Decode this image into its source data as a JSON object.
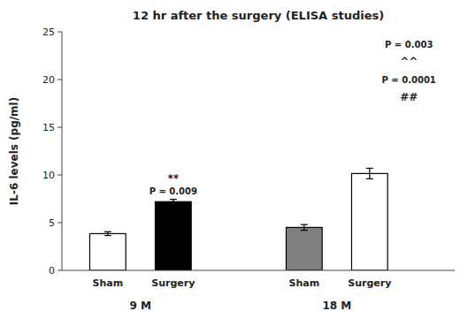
{
  "chart_data": {
    "type": "bar",
    "title": "12 hr after the surgery (ELISA studies)",
    "ylabel": "IL-6 levels (pg/ml)",
    "categories": [
      "Sham",
      "Surgery",
      "Sham",
      "Surgery"
    ],
    "group_labels": [
      "9 M",
      "18 M"
    ],
    "values": [
      3.85,
      7.2,
      4.5,
      10.15
    ],
    "errors": [
      0.2,
      0.25,
      0.3,
      0.55
    ],
    "colors": [
      "#ffffff",
      "#000000",
      "#808080",
      "#ffffff"
    ],
    "annotations": [
      "P = 0.009",
      "**",
      "P = 0.003",
      "^^",
      "P = 0.0001",
      "##"
    ],
    "ylim": [
      0,
      25
    ],
    "yticks": [
      0,
      5,
      10,
      15,
      20,
      25
    ],
    "grid": false
  }
}
